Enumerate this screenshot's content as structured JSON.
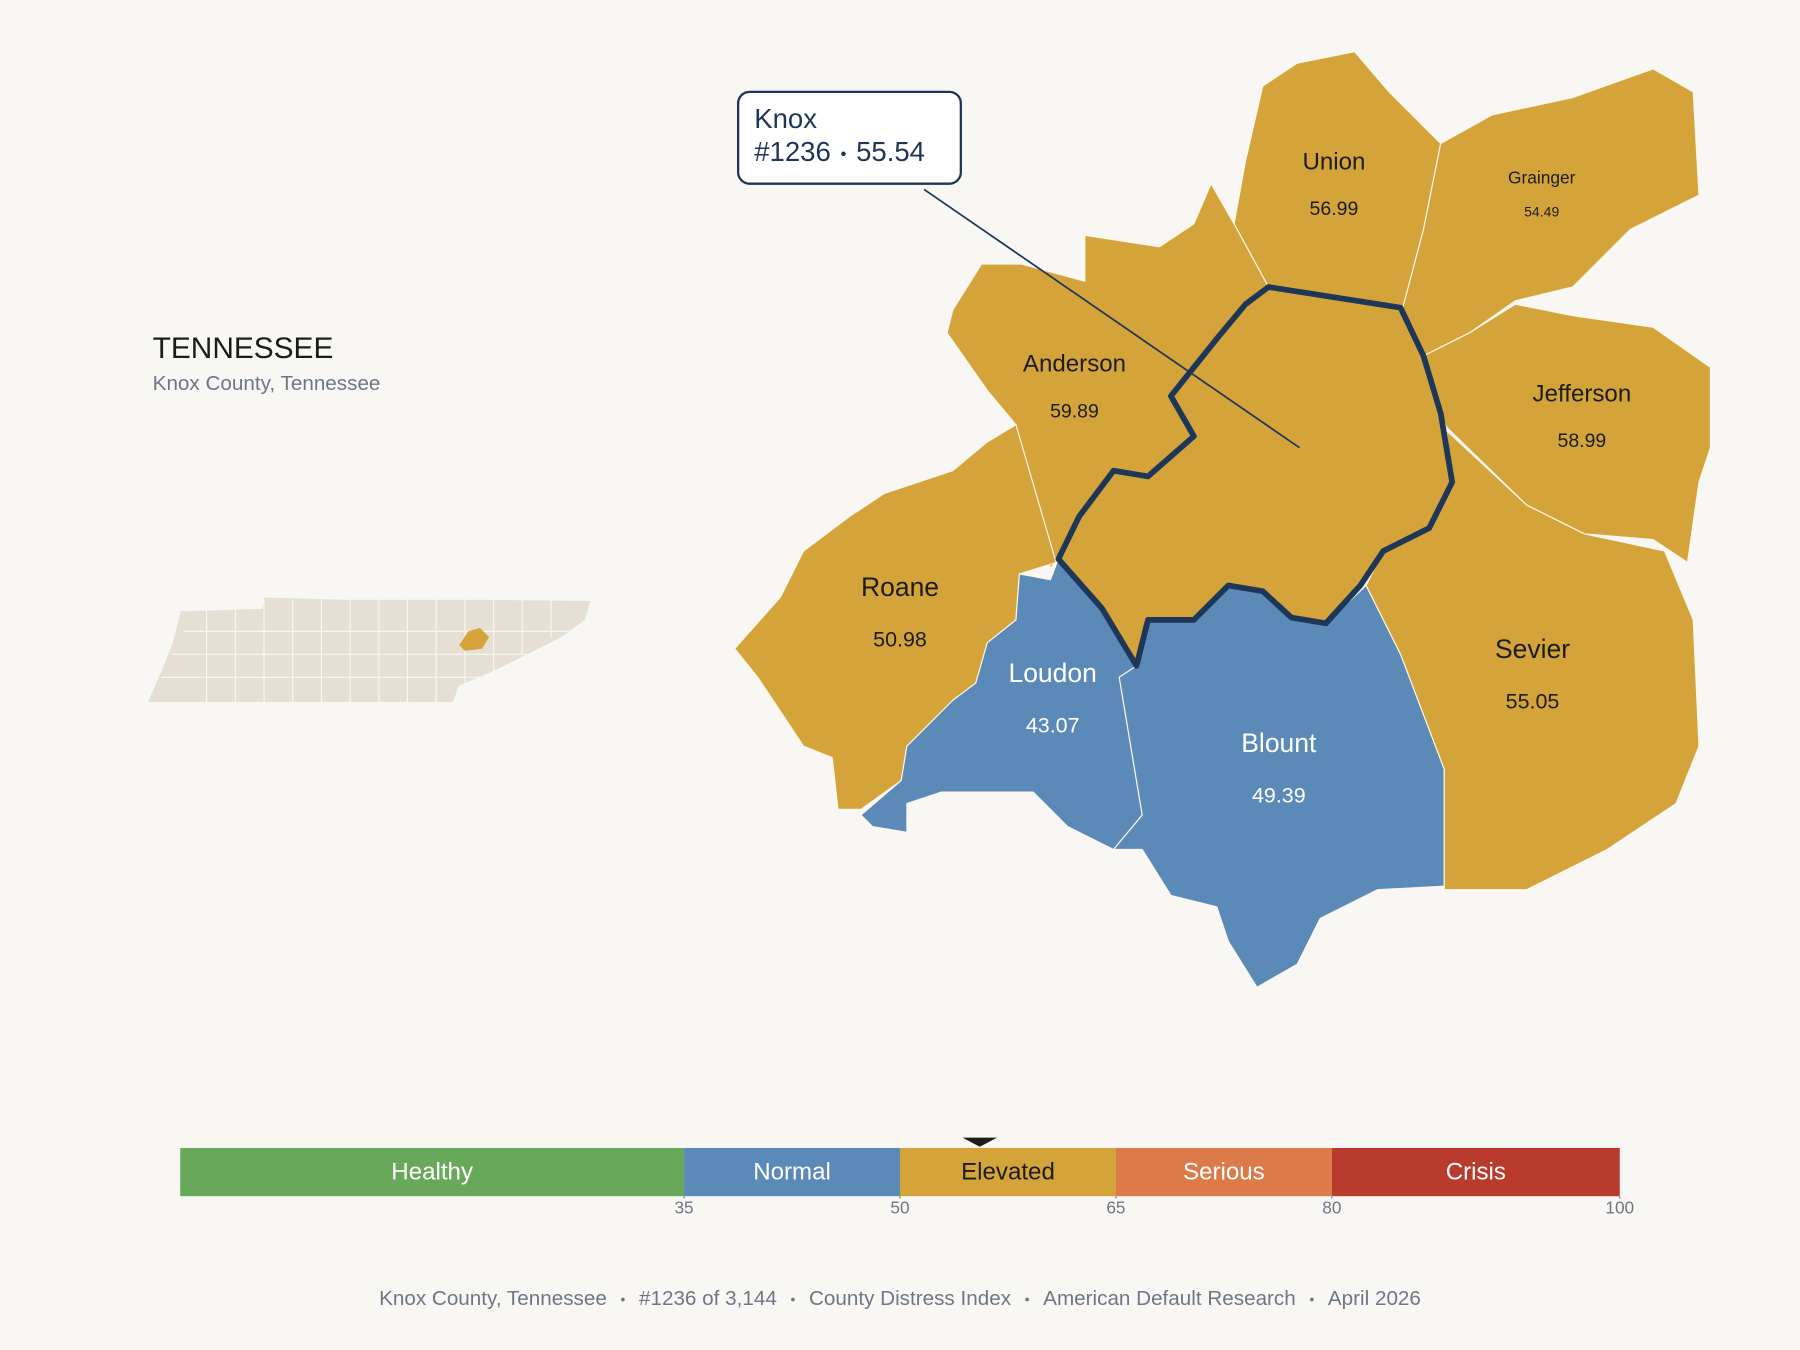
{
  "header": {
    "title": "TENNESSEE",
    "subtitle": "Knox County, Tennessee"
  },
  "map": {
    "counties": [
      {
        "name": "Union",
        "value": 56.99
      },
      {
        "name": "Grainger",
        "value": 54.49
      },
      {
        "name": "Anderson",
        "value": 59.89
      },
      {
        "name": "Jefferson",
        "value": 58.99
      },
      {
        "name": "Roane",
        "value": 50.98
      },
      {
        "name": "Sevier",
        "value": 55.05
      },
      {
        "name": "Loudon",
        "value": 43.07
      },
      {
        "name": "Blount",
        "value": 49.39
      }
    ],
    "highlight": {
      "name": "Knox",
      "rank": "#1236",
      "value": 55.54
    }
  },
  "scale": {
    "xlim": [
      0,
      100
    ],
    "xticks": [
      35,
      50,
      65,
      80,
      100
    ],
    "bands": [
      {
        "label": "Healthy",
        "color": "#67a85a"
      },
      {
        "label": "Normal",
        "color": "#5b8ab8"
      },
      {
        "label": "Elevated",
        "color": "#d4a43a"
      },
      {
        "label": "Serious",
        "color": "#dc7a4a"
      },
      {
        "label": "Crisis",
        "color": "#b93b2d"
      }
    ]
  },
  "footer": [
    "Knox County, Tennessee",
    "#1236 of 3,144",
    "County Distress Index",
    "American Default Research",
    "April 2026"
  ]
}
